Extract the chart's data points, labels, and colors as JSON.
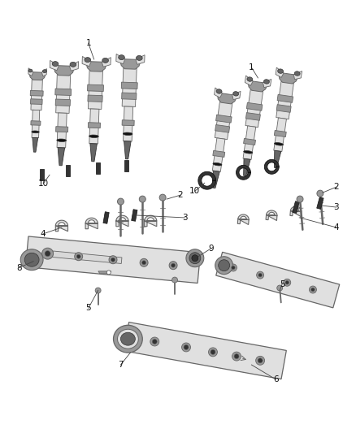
{
  "background_color": "#ffffff",
  "fig_width": 4.38,
  "fig_height": 5.33,
  "dpi": 100,
  "label_fontsize": 7.5,
  "label_color": "#111111",
  "line_color": "#444444",
  "c_body": "#c8c8c8",
  "c_dark": "#666666",
  "c_mid": "#999999",
  "c_light": "#e0e0e0",
  "c_vdark": "#333333",
  "c_black": "#111111",
  "c_outline": "#555555"
}
